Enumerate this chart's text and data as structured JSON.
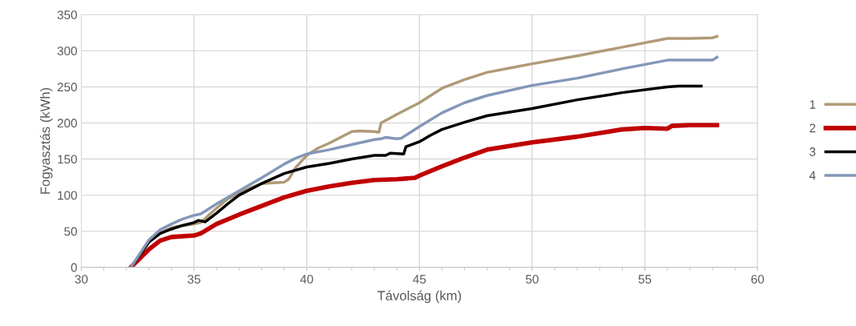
{
  "chart_data": {
    "type": "line",
    "xlabel": "Távolság (km)",
    "ylabel": "Fogyasztás (kWh)",
    "xlim": [
      30,
      60
    ],
    "xticks": [
      30,
      35,
      40,
      45,
      50,
      55,
      60
    ],
    "ylim": [
      0,
      350
    ],
    "yticks": [
      0,
      50,
      100,
      150,
      200,
      250,
      300,
      350
    ],
    "grid": true,
    "legend": "right",
    "marker": "none",
    "line_style": "solid",
    "series": [
      {
        "name": "1",
        "color": "#b09a78",
        "x": [
          32.2,
          33,
          33.5,
          34,
          34.5,
          35,
          35.3,
          36,
          36.5,
          37,
          37.5,
          38,
          38.5,
          39,
          39.2,
          39.5,
          40,
          40.5,
          41,
          41.5,
          42,
          42.3,
          43,
          43.2,
          43.3,
          44,
          44.5,
          45,
          45.5,
          46,
          47,
          48,
          49,
          50,
          52,
          54,
          56,
          57,
          58,
          58.2
        ],
        "values": [
          0,
          35,
          47,
          55,
          58,
          60,
          62,
          82,
          95,
          103,
          110,
          116,
          117,
          118,
          122,
          138,
          155,
          165,
          172,
          180,
          188,
          189,
          188,
          187,
          200,
          212,
          220,
          228,
          238,
          248,
          260,
          270,
          276,
          282,
          293,
          305,
          317,
          317,
          318,
          320
        ]
      },
      {
        "name": "2",
        "color": "#c00000",
        "x": [
          32.2,
          33,
          33.5,
          34,
          35,
          35.3,
          36,
          37,
          38,
          39,
          40,
          41,
          42,
          43,
          44,
          44.8,
          45,
          46,
          47,
          48,
          50,
          52,
          54,
          55,
          56,
          56.2,
          57,
          58.2
        ],
        "values": [
          0,
          25,
          37,
          42,
          44,
          47,
          60,
          73,
          85,
          97,
          106,
          112,
          117,
          121,
          122,
          124,
          127,
          140,
          152,
          163,
          173,
          181,
          191,
          193,
          192,
          196,
          197,
          197
        ]
      },
      {
        "name": "3",
        "color": "#000000",
        "x": [
          32.2,
          33,
          33.5,
          34,
          34.5,
          35,
          35.2,
          35.5,
          36,
          36.5,
          37,
          38,
          39,
          40,
          41,
          42,
          43,
          43.5,
          43.7,
          44.3,
          44.4,
          45,
          45.5,
          46,
          47,
          48,
          50,
          52,
          54,
          56,
          56.5,
          57.5
        ],
        "values": [
          0,
          35,
          47,
          53,
          58,
          62,
          65,
          63,
          75,
          88,
          100,
          116,
          130,
          139,
          144,
          150,
          155,
          155,
          158,
          157,
          167,
          174,
          183,
          191,
          201,
          210,
          220,
          232,
          242,
          250,
          251,
          251
        ]
      },
      {
        "name": "4",
        "color": "#8497b8",
        "x": [
          32.2,
          33,
          33.5,
          34,
          34.5,
          35,
          35.3,
          36,
          37,
          38,
          39,
          39.5,
          40,
          41,
          42,
          43,
          43.3,
          43.5,
          44,
          44.2,
          45,
          46,
          47,
          48,
          50,
          52,
          54,
          56,
          57,
          58,
          58.2
        ],
        "values": [
          0,
          38,
          52,
          60,
          67,
          72,
          74,
          88,
          106,
          124,
          143,
          151,
          157,
          163,
          170,
          177,
          178,
          180,
          178,
          179,
          195,
          214,
          228,
          238,
          252,
          262,
          275,
          287,
          287,
          287,
          291
        ]
      }
    ]
  }
}
